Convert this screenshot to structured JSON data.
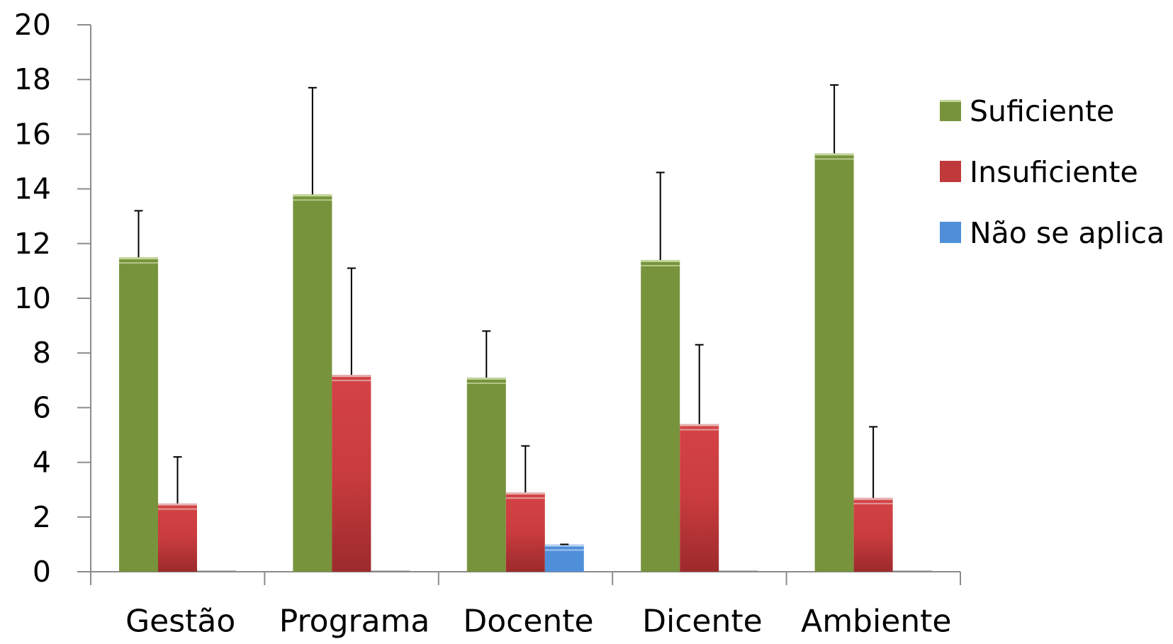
{
  "chart_data": {
    "type": "bar",
    "title": "",
    "xlabel": "",
    "ylabel": "",
    "categories": [
      "Gestão",
      "Programa",
      "Docente",
      "Dicente",
      "Ambiente"
    ],
    "series": [
      {
        "name": "Suficiente",
        "color": "#77933c",
        "values": [
          11.5,
          13.8,
          7.1,
          11.4,
          15.3
        ],
        "errors": [
          1.7,
          3.9,
          1.7,
          3.2,
          2.5
        ]
      },
      {
        "name": "Insuficiente",
        "color": "#c0393b",
        "values": [
          2.5,
          7.2,
          2.9,
          5.4,
          2.7
        ],
        "errors": [
          1.7,
          3.9,
          1.7,
          2.9,
          2.6
        ]
      },
      {
        "name": "Não se aplica",
        "color": "#4f8fd9",
        "values": [
          0,
          0,
          1.0,
          0,
          0
        ],
        "errors": [
          0,
          0,
          0,
          0,
          0
        ]
      }
    ],
    "ylim": [
      0,
      20
    ],
    "yticks": [
      "0",
      "2",
      "4",
      "6",
      "8",
      "10",
      "12",
      "14",
      "16",
      "18",
      "20"
    ],
    "grid": false,
    "legend_position": "right",
    "error_bars": true
  }
}
